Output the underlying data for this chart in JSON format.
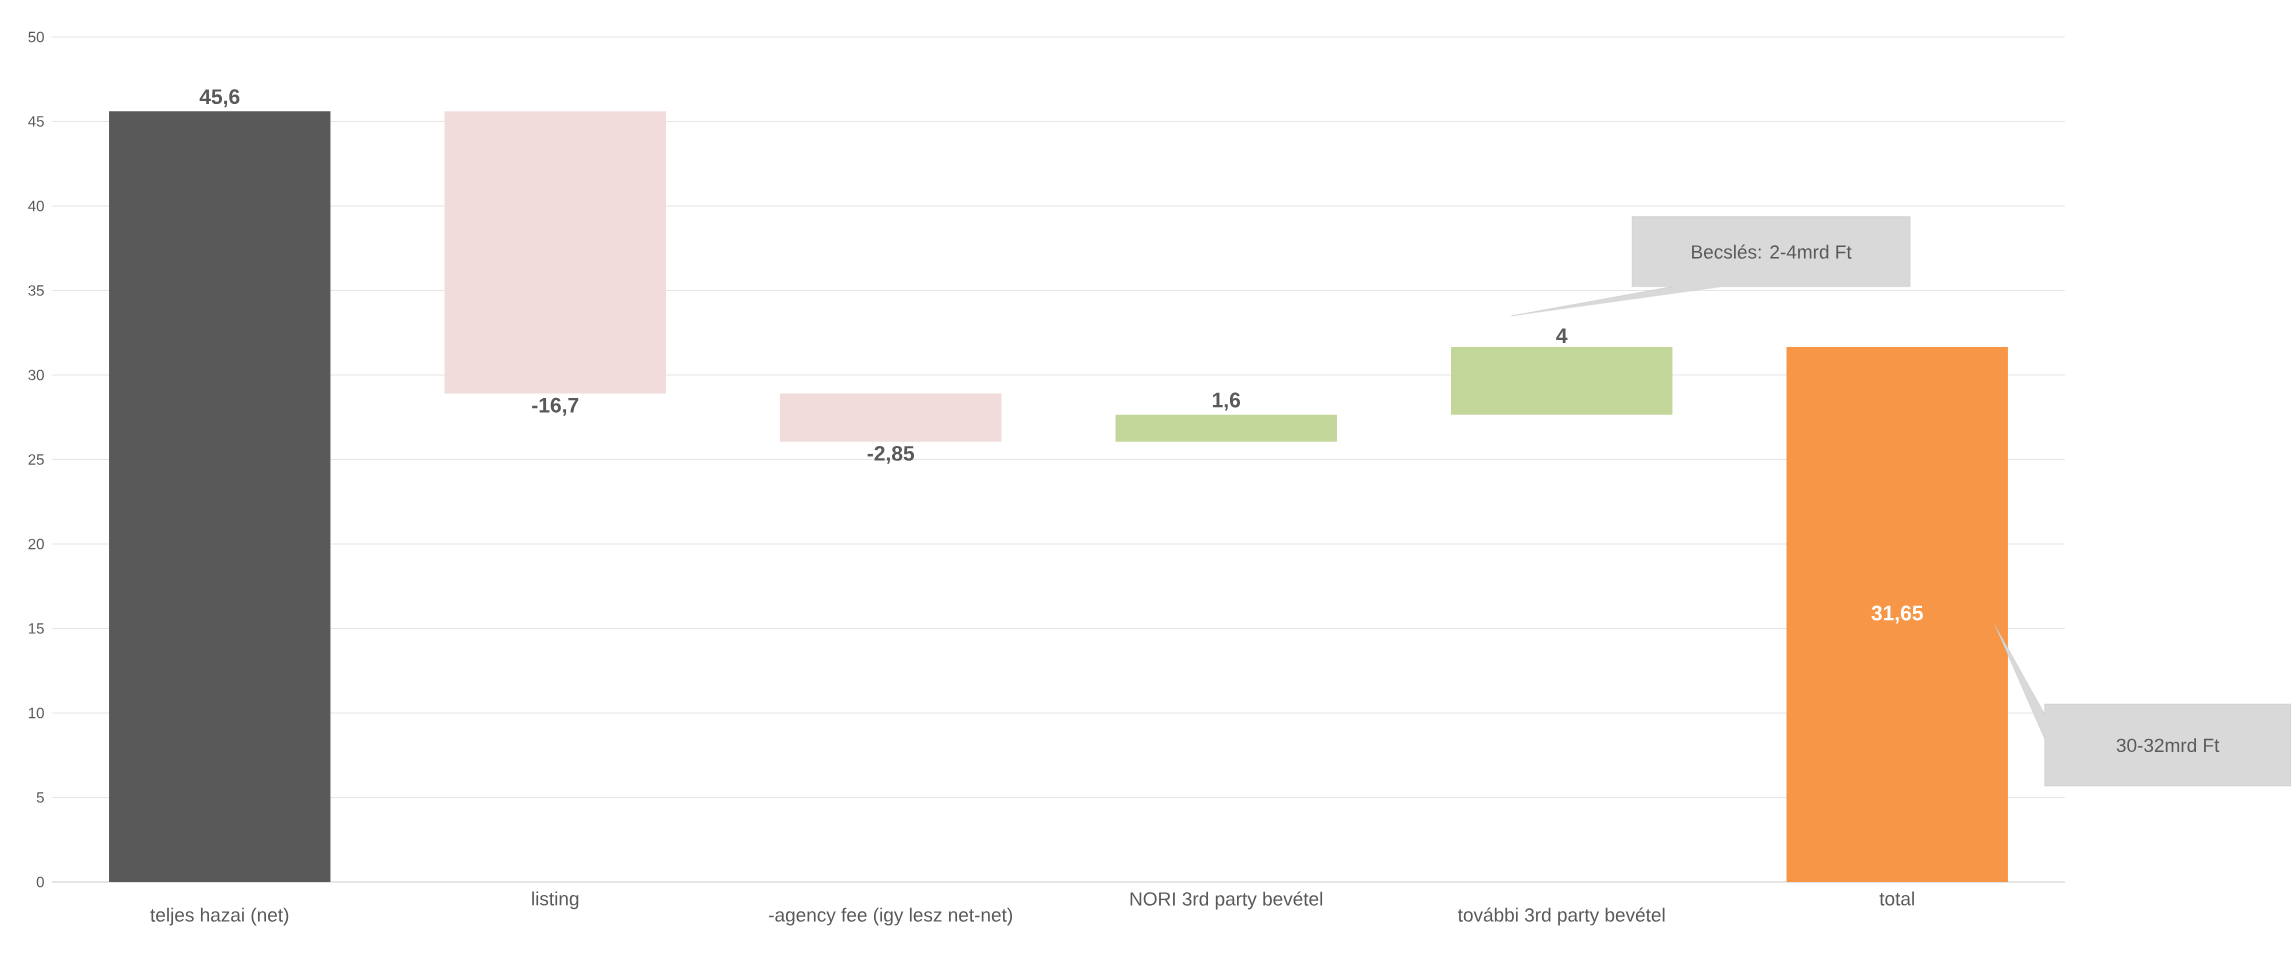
{
  "chart_data": {
    "type": "bar",
    "categories": [
      "teljes hazai (net)",
      "listing",
      "-agency fee (igy lesz net-net)",
      "NORI 3rd party bevétel",
      "további 3rd party bevétel",
      "total"
    ],
    "values": [
      45.6,
      -16.7,
      -2.85,
      1.6,
      4,
      31.65
    ],
    "base": [
      0,
      45.6,
      28.9,
      26.05,
      27.65,
      0
    ],
    "colors": [
      "#595959",
      "#f2dcdb",
      "#f2dcdb",
      "#c4d79b",
      "#c4d79b",
      "#f79646"
    ],
    "value_labels": [
      "45,6",
      "-16,7",
      "-2,85",
      "1,6",
      "4",
      "31,65"
    ],
    "ylim": [
      0,
      50
    ],
    "yticks": [
      0,
      5,
      10,
      15,
      20,
      25,
      30,
      35,
      40,
      45,
      50
    ],
    "grid": "y",
    "annotations": [
      "Becslés: 2-4mrd Ft",
      "30-32mrd Ft"
    ]
  }
}
